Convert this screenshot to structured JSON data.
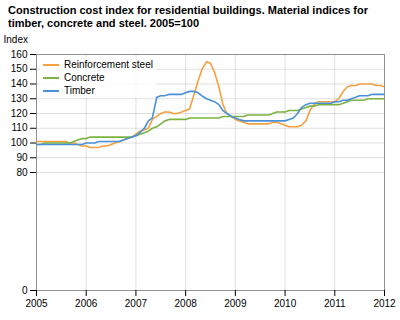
{
  "chart_data": {
    "type": "line",
    "title": "Construction cost index for residential buildings. Material indices for",
    "subtitle": "timber, concrete and steel. 2005=100",
    "ylabel": "Index",
    "x": [
      2005.0,
      2005.08,
      2005.17,
      2005.25,
      2005.33,
      2005.42,
      2005.5,
      2005.58,
      2005.67,
      2005.75,
      2005.83,
      2005.92,
      2006.0,
      2006.08,
      2006.17,
      2006.25,
      2006.33,
      2006.42,
      2006.5,
      2006.58,
      2006.67,
      2006.75,
      2006.83,
      2006.92,
      2007.0,
      2007.08,
      2007.17,
      2007.25,
      2007.33,
      2007.42,
      2007.5,
      2007.58,
      2007.67,
      2007.75,
      2007.83,
      2007.92,
      2008.0,
      2008.08,
      2008.17,
      2008.25,
      2008.33,
      2008.42,
      2008.5,
      2008.58,
      2008.67,
      2008.75,
      2008.83,
      2008.92,
      2009.0,
      2009.08,
      2009.17,
      2009.25,
      2009.33,
      2009.42,
      2009.5,
      2009.58,
      2009.67,
      2009.75,
      2009.83,
      2009.92,
      2010.0,
      2010.08,
      2010.17,
      2010.25,
      2010.33,
      2010.42,
      2010.5,
      2010.58,
      2010.67,
      2010.75,
      2010.83,
      2010.92,
      2011.0,
      2011.08,
      2011.17,
      2011.25,
      2011.33,
      2011.42,
      2011.5,
      2011.58,
      2011.67,
      2011.75,
      2011.83,
      2011.92,
      2012.0
    ],
    "series": [
      {
        "name": "Reinforcement steel",
        "color": "#F5A040",
        "values": [
          101,
          101,
          101,
          101,
          101,
          101,
          101,
          101,
          100,
          100,
          99,
          98,
          98,
          97,
          97,
          97,
          98,
          98,
          99,
          100,
          101,
          102,
          103,
          104,
          106,
          108,
          109,
          110,
          116,
          118,
          120,
          121,
          121,
          120,
          120,
          121,
          122,
          123,
          133,
          142,
          150,
          155,
          154,
          148,
          138,
          126,
          120,
          118,
          116,
          115,
          114,
          113,
          113,
          113,
          113,
          113,
          113,
          114,
          114,
          113,
          112,
          111,
          111,
          111,
          112,
          115,
          122,
          126,
          128,
          128,
          128,
          128,
          128,
          130,
          135,
          138,
          139,
          139,
          140,
          140,
          140,
          140,
          139,
          139,
          138
        ]
      },
      {
        "name": "Concrete",
        "color": "#7CB342",
        "values": [
          99,
          99,
          100,
          100,
          100,
          100,
          100,
          100,
          100,
          101,
          102,
          103,
          103,
          104,
          104,
          104,
          104,
          104,
          104,
          104,
          104,
          104,
          104,
          104,
          105,
          106,
          107,
          108,
          110,
          111,
          113,
          115,
          116,
          116,
          116,
          116,
          116,
          117,
          117,
          117,
          117,
          117,
          117,
          117,
          117,
          118,
          118,
          118,
          118,
          118,
          118,
          119,
          119,
          119,
          119,
          119,
          119,
          120,
          121,
          121,
          121,
          122,
          122,
          122,
          123,
          124,
          125,
          125,
          126,
          126,
          126,
          126,
          126,
          126,
          127,
          128,
          129,
          129,
          129,
          129,
          130,
          130,
          130,
          130,
          130
        ]
      },
      {
        "name": "Timber",
        "color": "#4A90D9",
        "values": [
          99,
          99,
          99,
          99,
          99,
          99,
          99,
          99,
          99,
          99,
          99,
          99,
          100,
          100,
          100,
          101,
          101,
          101,
          101,
          101,
          101,
          102,
          103,
          104,
          105,
          107,
          110,
          115,
          117,
          131,
          132,
          132,
          133,
          133,
          133,
          133,
          134,
          135,
          135,
          134,
          132,
          130,
          129,
          128,
          126,
          122,
          120,
          118,
          117,
          116,
          115,
          115,
          115,
          115,
          115,
          115,
          115,
          115,
          115,
          115,
          115,
          116,
          117,
          120,
          124,
          126,
          127,
          127,
          127,
          127,
          127,
          127,
          128,
          128,
          129,
          129,
          130,
          131,
          132,
          132,
          132,
          133,
          133,
          133,
          133
        ]
      }
    ],
    "xlim": [
      2005.0,
      2012.0
    ],
    "ylim": [
      0,
      160
    ],
    "xticks": [
      2005,
      2006,
      2007,
      2008,
      2009,
      2010,
      2011,
      2012
    ],
    "yticks": [
      0,
      80,
      90,
      100,
      110,
      120,
      130,
      140,
      150,
      160
    ],
    "grid": true,
    "legend": "upper left"
  }
}
